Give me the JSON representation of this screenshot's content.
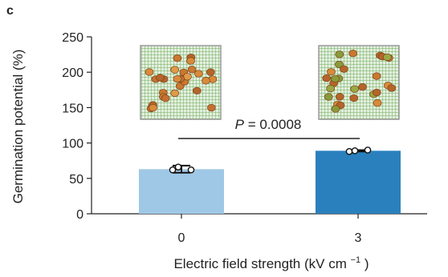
{
  "panel_label": "c",
  "chart_data": {
    "type": "bar",
    "categories": [
      "0",
      "3"
    ],
    "values": [
      63,
      89
    ],
    "error": [
      5,
      1
    ],
    "points": [
      [
        62,
        66,
        62
      ],
      [
        88,
        89,
        90
      ]
    ],
    "xlabel": "Electric field strength (kV cm",
    "xlabel_sup": "−1",
    "xlabel_close": ")",
    "ylabel": "Germination potential (%)",
    "ylim": [
      0,
      250
    ],
    "yticks": [
      0,
      50,
      100,
      150,
      200,
      250
    ],
    "grid": false,
    "bar_colors": [
      "#9fc8e6",
      "#2a80bd"
    ],
    "significance": {
      "prefix": "P",
      "value": "= 0.0008"
    },
    "insets": [
      "seed-tray-photo-control",
      "seed-tray-photo-treated"
    ]
  }
}
